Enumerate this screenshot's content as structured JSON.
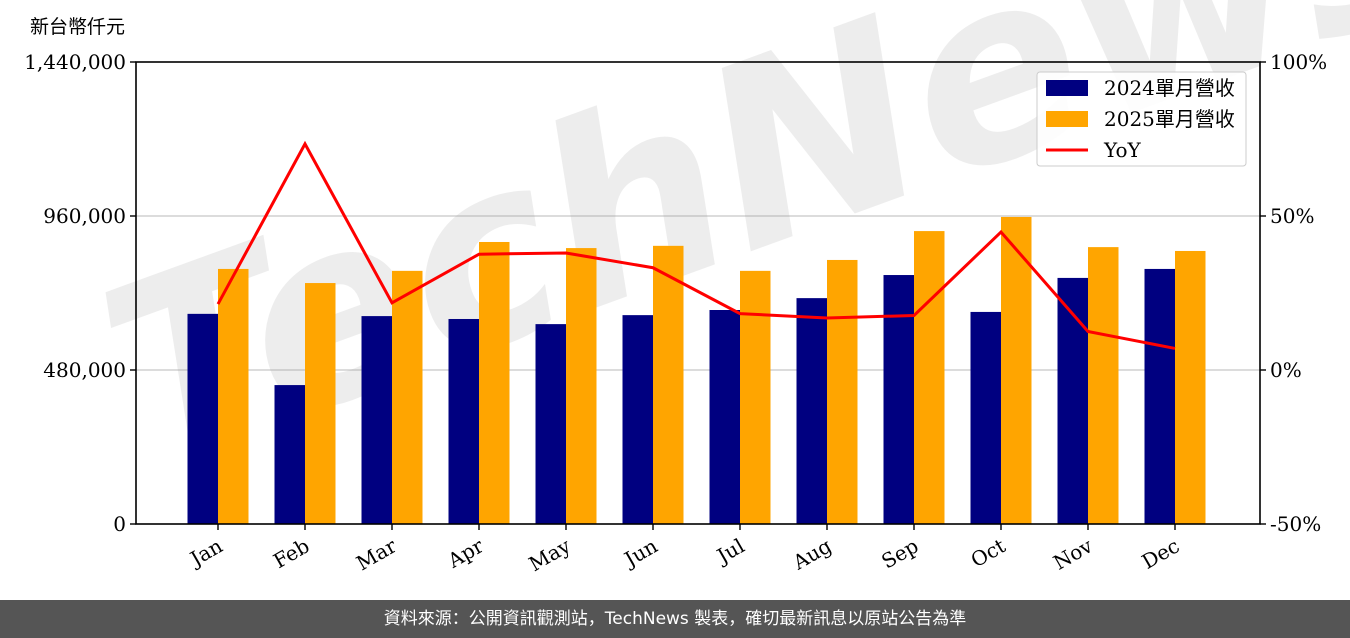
{
  "chart_data": {
    "type": "bar",
    "ylabel": "新台幣仟元",
    "categories": [
      "Jan",
      "Feb",
      "Mar",
      "Apr",
      "May",
      "Jun",
      "Jul",
      "Aug",
      "Sep",
      "Oct",
      "Nov",
      "Dec"
    ],
    "series": [
      {
        "name": "2024單月營收",
        "type": "bar",
        "axis": "left",
        "color": "#000080",
        "values": [
          655000,
          433000,
          648000,
          639000,
          623000,
          651000,
          667000,
          704000,
          776000,
          661000,
          767000,
          795000
        ]
      },
      {
        "name": "2025單月營收",
        "type": "bar",
        "axis": "left",
        "color": "#FFA500",
        "values": [
          795000,
          751000,
          789000,
          879000,
          860000,
          867000,
          789000,
          823000,
          913000,
          957000,
          863000,
          851000
        ]
      },
      {
        "name": "YoY",
        "type": "line",
        "axis": "right",
        "color": "#FF0000",
        "values": [
          21.4,
          73.4,
          21.8,
          37.6,
          38.0,
          33.2,
          18.3,
          16.9,
          17.7,
          44.8,
          12.5,
          7.0
        ]
      }
    ],
    "ylim": [
      0,
      1440000
    ],
    "yticks": [
      0,
      480000,
      960000,
      1440000
    ],
    "ytick_labels": [
      "0",
      "480,000",
      "960,000",
      "1,440,000"
    ],
    "y2lim": [
      -50,
      100
    ],
    "y2ticks": [
      -50,
      0,
      50,
      100
    ],
    "y2tick_labels": [
      "-50%",
      "0%",
      "50%",
      "100%"
    ],
    "grid": "horizontal",
    "legend_placement": "top-right",
    "xtick_rotation": 30
  },
  "watermark": "TechNews",
  "footer": "資料來源：公開資訊觀測站，TechNews 製表，確切最新訊息以原站公告為準"
}
